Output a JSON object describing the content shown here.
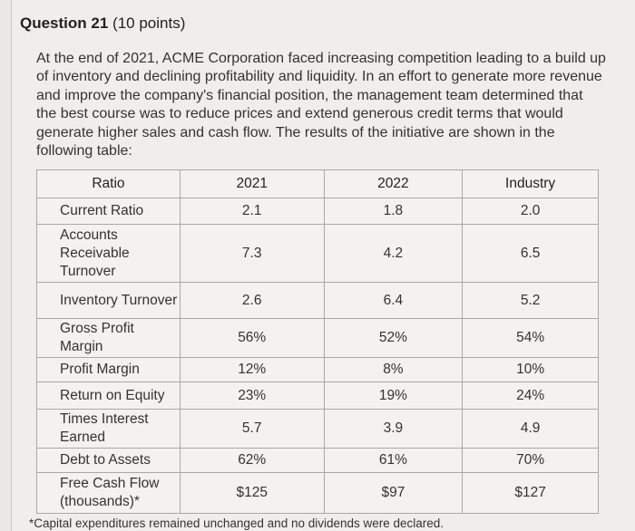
{
  "header": {
    "title": "Question 21",
    "points": "(10 points)"
  },
  "prompt": "At the end of 2021, ACME Corporation faced increasing competition leading to a build up of inventory and declining profitability and liquidity. In an effort to generate more revenue and improve the company's financial position, the management team determined that the best course was to reduce prices and extend generous credit terms that would generate higher sales and cash flow. The results of the initiative are shown in the following table:",
  "table": {
    "columns": [
      "Ratio",
      "2021",
      "2022",
      "Industry"
    ],
    "rows": [
      [
        "Current Ratio",
        "2.1",
        "1.8",
        "2.0"
      ],
      [
        "Accounts Receivable Turnover",
        "7.3",
        "4.2",
        "6.5"
      ],
      [
        "Inventory Turnover",
        "2.6",
        "6.4",
        "5.2"
      ],
      [
        "Gross Profit Margin",
        "56%",
        "52%",
        "54%"
      ],
      [
        "Profit Margin",
        "12%",
        "8%",
        "10%"
      ],
      [
        "Return on Equity",
        "23%",
        "19%",
        "24%"
      ],
      [
        "Times Interest Earned",
        "5.7",
        "3.9",
        "4.9"
      ],
      [
        "Debt to Assets",
        "62%",
        "61%",
        "70%"
      ],
      [
        "Free Cash Flow (thousands)*",
        "$125",
        "$97",
        "$127"
      ]
    ]
  },
  "footnote": "*Capital expenditures remained unchanged and no dividends were declared."
}
